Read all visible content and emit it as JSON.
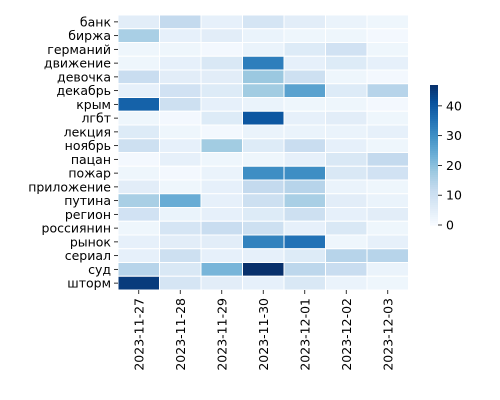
{
  "chart_data": {
    "type": "heatmap",
    "title": "",
    "xlabel": "",
    "ylabel": "",
    "colormap": "Blues",
    "colorbar": {
      "min": 0,
      "max": 47,
      "ticks": [
        0,
        10,
        20,
        30,
        40
      ]
    },
    "x_categories": [
      "2023-11-27",
      "2023-11-28",
      "2023-11-29",
      "2023-11-30",
      "2023-12-01",
      "2023-12-02",
      "2023-12-03"
    ],
    "y_categories": [
      "банк",
      "биржа",
      "германий",
      "движение",
      "девочка",
      "декабрь",
      "крым",
      "лгбт",
      "лекция",
      "ноябрь",
      "пацан",
      "пожар",
      "приложение",
      "путина",
      "регион",
      "россиянин",
      "рынок",
      "сериал",
      "суд",
      "шторм"
    ],
    "values": [
      [
        5,
        12,
        4,
        8,
        5,
        3,
        2
      ],
      [
        16,
        4,
        5,
        3,
        2,
        2,
        1
      ],
      [
        2,
        2,
        1,
        3,
        6,
        9,
        2
      ],
      [
        2,
        4,
        7,
        33,
        4,
        6,
        4
      ],
      [
        11,
        5,
        5,
        18,
        10,
        2,
        1
      ],
      [
        4,
        9,
        6,
        17,
        26,
        6,
        14
      ],
      [
        38,
        10,
        4,
        3,
        2,
        2,
        1
      ],
      [
        2,
        1,
        6,
        40,
        4,
        5,
        2
      ],
      [
        6,
        2,
        1,
        3,
        3,
        3,
        4
      ],
      [
        10,
        4,
        17,
        6,
        11,
        4,
        2
      ],
      [
        1,
        4,
        2,
        2,
        4,
        7,
        12
      ],
      [
        2,
        1,
        3,
        30,
        30,
        7,
        9
      ],
      [
        5,
        2,
        4,
        12,
        14,
        3,
        2
      ],
      [
        16,
        24,
        4,
        10,
        16,
        5,
        3
      ],
      [
        9,
        3,
        4,
        6,
        10,
        4,
        5
      ],
      [
        2,
        8,
        11,
        10,
        4,
        7,
        2
      ],
      [
        4,
        5,
        5,
        32,
        35,
        2,
        4
      ],
      [
        4,
        10,
        4,
        4,
        6,
        14,
        14
      ],
      [
        14,
        7,
        22,
        47,
        13,
        11,
        3
      ],
      [
        45,
        8,
        5,
        4,
        7,
        3,
        2
      ]
    ]
  }
}
